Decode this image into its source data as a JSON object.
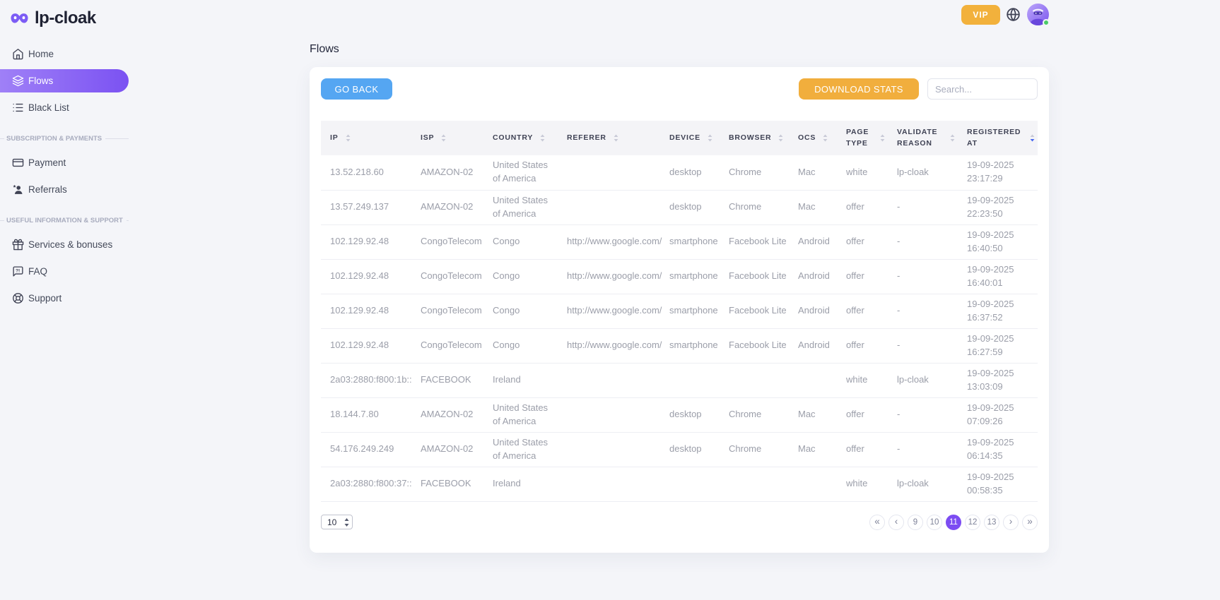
{
  "brand": {
    "name": "lp-cloak"
  },
  "topbar": {
    "vip_label": "VIP"
  },
  "sidebar": {
    "home": "Home",
    "flows": "Flows",
    "black_list": "Black List",
    "header_payments": "SUBSCRIPTION & PAYMENTS",
    "payment": "Payment",
    "referrals": "Referrals",
    "header_support": "USEFUL INFORMATION & SUPPORT",
    "services": "Services & bonuses",
    "faq": "FAQ",
    "support": "Support"
  },
  "page": {
    "title": "Flows"
  },
  "toolbar": {
    "go_back": "GO BACK",
    "download_stats": "DOWNLOAD STATS",
    "search_placeholder": "Search..."
  },
  "table": {
    "columns": [
      {
        "key": "ip",
        "label": "IP"
      },
      {
        "key": "isp",
        "label": "ISP"
      },
      {
        "key": "country",
        "label": "COUNTRY"
      },
      {
        "key": "referer",
        "label": "REFERER"
      },
      {
        "key": "device",
        "label": "DEVICE"
      },
      {
        "key": "browser",
        "label": "BROWSER"
      },
      {
        "key": "ocs",
        "label": "OCS"
      },
      {
        "key": "page_type",
        "label": "PAGE TYPE"
      },
      {
        "key": "validate_reason",
        "label": "VALIDATE REASON"
      },
      {
        "key": "registered_at",
        "label": "REGISTERED AT",
        "sorted": "desc"
      }
    ],
    "rows": [
      {
        "ip": "13.52.218.60",
        "isp": "AMAZON-02",
        "country": "United States of America",
        "referer": "",
        "device": "desktop",
        "browser": "Chrome",
        "ocs": "Mac",
        "page_type": "white",
        "validate_reason": "lp-cloak",
        "registered_at": "19-09-2025 23:17:29"
      },
      {
        "ip": "13.57.249.137",
        "isp": "AMAZON-02",
        "country": "United States of America",
        "referer": "",
        "device": "desktop",
        "browser": "Chrome",
        "ocs": "Mac",
        "page_type": "offer",
        "validate_reason": "-",
        "registered_at": "19-09-2025 22:23:50"
      },
      {
        "ip": "102.129.92.48",
        "isp": "CongoTelecom",
        "country": "Congo",
        "referer": "http://www.google.com/",
        "device": "smartphone",
        "browser": "Facebook Lite",
        "ocs": "Android",
        "page_type": "offer",
        "validate_reason": "-",
        "registered_at": "19-09-2025 16:40:50"
      },
      {
        "ip": "102.129.92.48",
        "isp": "CongoTelecom",
        "country": "Congo",
        "referer": "http://www.google.com/",
        "device": "smartphone",
        "browser": "Facebook Lite",
        "ocs": "Android",
        "page_type": "offer",
        "validate_reason": "-",
        "registered_at": "19-09-2025 16:40:01"
      },
      {
        "ip": "102.129.92.48",
        "isp": "CongoTelecom",
        "country": "Congo",
        "referer": "http://www.google.com/",
        "device": "smartphone",
        "browser": "Facebook Lite",
        "ocs": "Android",
        "page_type": "offer",
        "validate_reason": "-",
        "registered_at": "19-09-2025 16:37:52"
      },
      {
        "ip": "102.129.92.48",
        "isp": "CongoTelecom",
        "country": "Congo",
        "referer": "http://www.google.com/",
        "device": "smartphone",
        "browser": "Facebook Lite",
        "ocs": "Android",
        "page_type": "offer",
        "validate_reason": "-",
        "registered_at": "19-09-2025 16:27:59"
      },
      {
        "ip": "2a03:2880:f800:1b::",
        "isp": "FACEBOOK",
        "country": "Ireland",
        "referer": "",
        "device": "",
        "browser": "",
        "ocs": "",
        "page_type": "white",
        "validate_reason": "lp-cloak",
        "registered_at": "19-09-2025 13:03:09"
      },
      {
        "ip": "18.144.7.80",
        "isp": "AMAZON-02",
        "country": "United States of America",
        "referer": "",
        "device": "desktop",
        "browser": "Chrome",
        "ocs": "Mac",
        "page_type": "offer",
        "validate_reason": "-",
        "registered_at": "19-09-2025 07:09:26"
      },
      {
        "ip": "54.176.249.249",
        "isp": "AMAZON-02",
        "country": "United States of America",
        "referer": "",
        "device": "desktop",
        "browser": "Chrome",
        "ocs": "Mac",
        "page_type": "offer",
        "validate_reason": "-",
        "registered_at": "19-09-2025 06:14:35"
      },
      {
        "ip": "2a03:2880:f800:37::",
        "isp": "FACEBOOK",
        "country": "Ireland",
        "referer": "",
        "device": "",
        "browser": "",
        "ocs": "",
        "page_type": "white",
        "validate_reason": "lp-cloak",
        "registered_at": "19-09-2025 00:58:35"
      }
    ]
  },
  "pagination": {
    "page_size": "10",
    "items": [
      {
        "label": "«",
        "name": "first",
        "arrow": true
      },
      {
        "label": "‹",
        "name": "prev",
        "arrow": true
      },
      {
        "label": "9",
        "name": "page-9"
      },
      {
        "label": "10",
        "name": "page-10"
      },
      {
        "label": "11",
        "name": "page-11",
        "active": true
      },
      {
        "label": "12",
        "name": "page-12"
      },
      {
        "label": "13",
        "name": "page-13"
      },
      {
        "label": "›",
        "name": "next",
        "arrow": true
      },
      {
        "label": "»",
        "name": "last",
        "arrow": true
      }
    ]
  },
  "colors": {
    "accent_purple": "#7C4CF2",
    "accent_blue": "#55A6F2",
    "accent_orange": "#F1AE3D",
    "sort_active": "#4666F0",
    "online_dot": "#4ACB67"
  }
}
